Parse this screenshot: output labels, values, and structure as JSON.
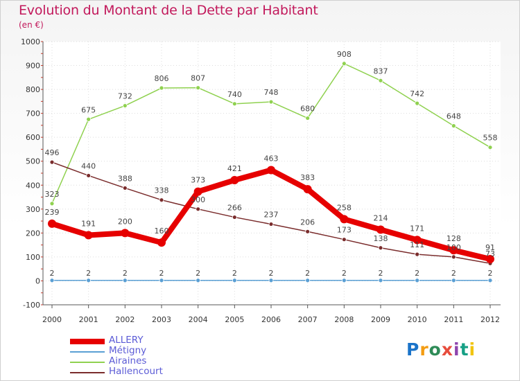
{
  "header": {
    "title": "Evolution du Montant de la Dette par Habitant",
    "subtitle": "(en €)"
  },
  "logo": {
    "text": "Proxiti",
    "colors": [
      "#1a73c9",
      "#f39c12",
      "#2e8b57",
      "#e74c3c",
      "#8e44ad",
      "#16a085",
      "#f1c40f"
    ]
  },
  "chart_data": {
    "type": "line",
    "x": [
      "2000",
      "2001",
      "2002",
      "2003",
      "2004",
      "2005",
      "2006",
      "2007",
      "2008",
      "2009",
      "2010",
      "2011",
      "2012"
    ],
    "ylim": [
      -100,
      1000
    ],
    "yticks": [
      -100,
      0,
      100,
      200,
      300,
      400,
      500,
      600,
      700,
      800,
      900,
      1000
    ],
    "legend_position": "bottom-left",
    "series": [
      {
        "name": "ALLERY",
        "color": "#e60000",
        "values": [
          239,
          191,
          200,
          160,
          373,
          421,
          463,
          383,
          258,
          214,
          171,
          128,
          91
        ],
        "labels": [
          "239",
          "191",
          "200",
          "160",
          "373",
          "421",
          "463",
          "383",
          "258",
          "214",
          "171",
          "128",
          "91"
        ]
      },
      {
        "name": "Métigny",
        "color": "#5a9fd4",
        "values": [
          2,
          2,
          2,
          2,
          2,
          2,
          2,
          2,
          2,
          2,
          2,
          2,
          2
        ],
        "labels": [
          "2",
          "2",
          "2",
          "2",
          "2",
          "2",
          "2",
          "2",
          "2",
          "2",
          "2",
          "2",
          "2"
        ]
      },
      {
        "name": "Airaines",
        "color": "#8fd14f",
        "values": [
          323,
          675,
          732,
          806,
          807,
          740,
          748,
          680,
          908,
          837,
          742,
          648,
          558
        ],
        "labels": [
          "323",
          "675",
          "732",
          "806",
          "807",
          "740",
          "748",
          "680",
          "908",
          "837",
          "742",
          "648",
          "558"
        ]
      },
      {
        "name": "Hallencourt",
        "color": "#7a2c2c",
        "values": [
          496,
          440,
          388,
          338,
          300,
          266,
          237,
          206,
          173,
          138,
          111,
          100,
          73
        ],
        "labels": [
          "496",
          "440",
          "388",
          "338",
          "300",
          "266",
          "237",
          "206",
          "173",
          "138",
          "111",
          "100",
          "73"
        ]
      }
    ]
  }
}
